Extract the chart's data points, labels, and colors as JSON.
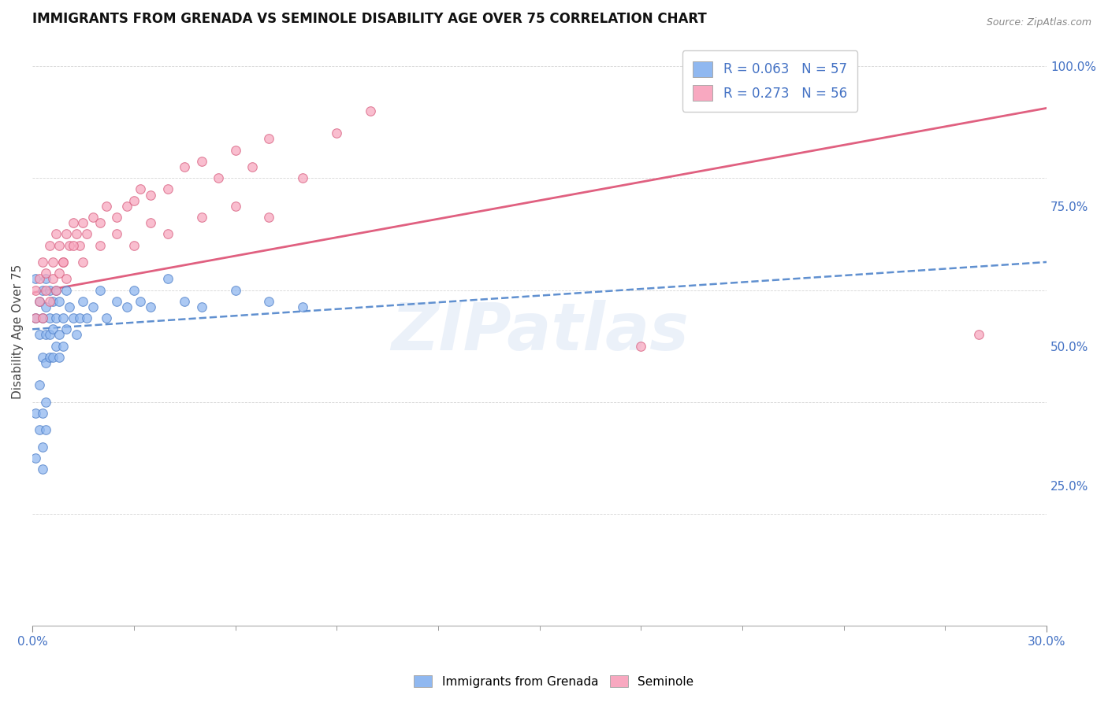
{
  "title": "IMMIGRANTS FROM GRENADA VS SEMINOLE DISABILITY AGE OVER 75 CORRELATION CHART",
  "source": "Source: ZipAtlas.com",
  "ylabel": "Disability Age Over 75",
  "ylabel_right_ticks": [
    "25.0%",
    "50.0%",
    "75.0%",
    "100.0%"
  ],
  "ylabel_right_values": [
    0.25,
    0.5,
    0.75,
    1.0
  ],
  "legend_entries": [
    {
      "label": "R = 0.063   N = 57",
      "color": "#a8c8f0"
    },
    {
      "label": "R = 0.273   N = 56",
      "color": "#f8b8c8"
    }
  ],
  "legend_bottom": [
    {
      "label": "Immigrants from Grenada",
      "color": "#a8c8f0"
    },
    {
      "label": "Seminole",
      "color": "#f8b8c8"
    }
  ],
  "scatter_grenada_x": [
    0.001,
    0.001,
    0.002,
    0.002,
    0.003,
    0.003,
    0.003,
    0.004,
    0.004,
    0.004,
    0.004,
    0.005,
    0.005,
    0.005,
    0.005,
    0.006,
    0.006,
    0.006,
    0.007,
    0.007,
    0.007,
    0.008,
    0.008,
    0.008,
    0.009,
    0.009,
    0.01,
    0.01,
    0.011,
    0.012,
    0.013,
    0.014,
    0.015,
    0.016,
    0.018,
    0.02,
    0.022,
    0.025,
    0.028,
    0.03,
    0.032,
    0.035,
    0.04,
    0.045,
    0.05,
    0.06,
    0.07,
    0.08,
    0.001,
    0.001,
    0.002,
    0.002,
    0.003,
    0.003,
    0.003,
    0.004,
    0.004
  ],
  "scatter_grenada_y": [
    0.55,
    0.62,
    0.58,
    0.52,
    0.6,
    0.55,
    0.48,
    0.62,
    0.57,
    0.52,
    0.47,
    0.6,
    0.55,
    0.52,
    0.48,
    0.58,
    0.53,
    0.48,
    0.6,
    0.55,
    0.5,
    0.58,
    0.52,
    0.48,
    0.55,
    0.5,
    0.6,
    0.53,
    0.57,
    0.55,
    0.52,
    0.55,
    0.58,
    0.55,
    0.57,
    0.6,
    0.55,
    0.58,
    0.57,
    0.6,
    0.58,
    0.57,
    0.62,
    0.58,
    0.57,
    0.6,
    0.58,
    0.57,
    0.38,
    0.3,
    0.43,
    0.35,
    0.38,
    0.32,
    0.28,
    0.4,
    0.35
  ],
  "scatter_seminole_x": [
    0.001,
    0.002,
    0.003,
    0.004,
    0.005,
    0.006,
    0.007,
    0.008,
    0.009,
    0.01,
    0.011,
    0.012,
    0.013,
    0.014,
    0.015,
    0.016,
    0.018,
    0.02,
    0.022,
    0.025,
    0.028,
    0.03,
    0.032,
    0.035,
    0.04,
    0.045,
    0.05,
    0.055,
    0.06,
    0.065,
    0.07,
    0.08,
    0.09,
    0.1,
    0.001,
    0.002,
    0.003,
    0.004,
    0.005,
    0.006,
    0.007,
    0.008,
    0.009,
    0.01,
    0.012,
    0.015,
    0.02,
    0.025,
    0.03,
    0.035,
    0.04,
    0.05,
    0.06,
    0.07,
    0.28,
    0.18
  ],
  "scatter_seminole_y": [
    0.6,
    0.62,
    0.65,
    0.63,
    0.68,
    0.65,
    0.7,
    0.68,
    0.65,
    0.7,
    0.68,
    0.72,
    0.7,
    0.68,
    0.72,
    0.7,
    0.73,
    0.72,
    0.75,
    0.73,
    0.75,
    0.76,
    0.78,
    0.77,
    0.78,
    0.82,
    0.83,
    0.8,
    0.85,
    0.82,
    0.87,
    0.8,
    0.88,
    0.92,
    0.55,
    0.58,
    0.55,
    0.6,
    0.58,
    0.62,
    0.6,
    0.63,
    0.65,
    0.62,
    0.68,
    0.65,
    0.68,
    0.7,
    0.68,
    0.72,
    0.7,
    0.73,
    0.75,
    0.73,
    0.52,
    0.5
  ],
  "line_grenada_intercept": 0.53,
  "line_grenada_slope": 0.4,
  "line_seminole_intercept": 0.595,
  "line_seminole_slope": 1.1,
  "scatter_color_grenada": "#90b8f0",
  "scatter_edge_grenada": "#5080c8",
  "scatter_color_seminole": "#f8a8c0",
  "scatter_edge_seminole": "#d86080",
  "line_color_grenada": "#6090d0",
  "line_color_seminole": "#e06080",
  "background_color": "#ffffff",
  "xlim": [
    0.0,
    0.3
  ],
  "ylim": [
    0.0,
    1.05
  ],
  "watermark_text": "ZIPatlas"
}
